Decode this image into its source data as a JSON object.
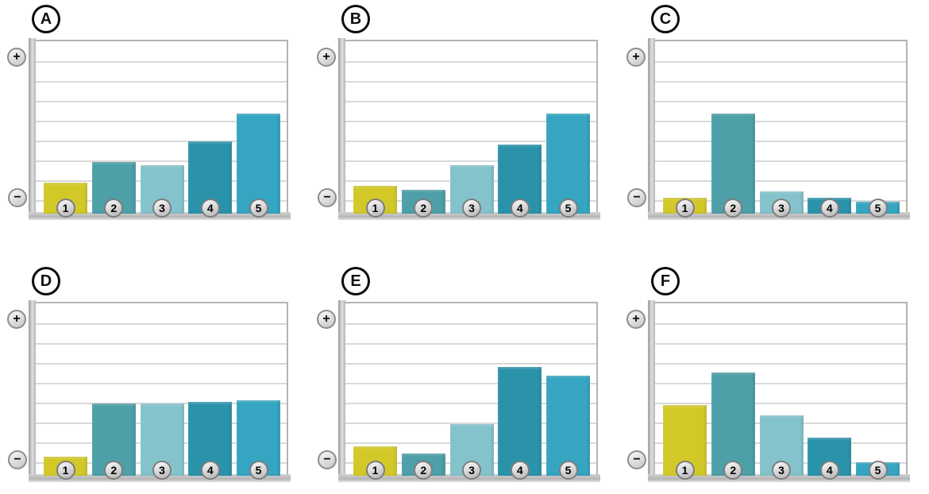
{
  "figure": {
    "description_title": "",
    "rows": 2,
    "cols": 3
  },
  "icons": {
    "plus": "+",
    "minus": "−"
  },
  "style": {
    "bar_colors": [
      "#d2c929",
      "#4d9fa8",
      "#85c3cc",
      "#2a93aa",
      "#35a5c1"
    ],
    "gridline_color": "#d9d9d9",
    "axis_color": "#b9b9b9",
    "badge_ring_color": "#7d7d7d",
    "letter_ring_color": "#0c0c0c",
    "background": "#ffffff"
  },
  "chart_data": [
    {
      "type": "bar",
      "title": "A",
      "categories": [
        "1",
        "2",
        "3",
        "4",
        "5"
      ],
      "values": [
        18,
        30,
        28,
        42,
        58
      ],
      "xlabel": "",
      "ylabel": "",
      "ylim": [
        0,
        100
      ],
      "grid": true,
      "gridline_count": 8,
      "y_axis_top_label": "+",
      "y_axis_bottom_label": "−",
      "legend": "none"
    },
    {
      "type": "bar",
      "title": "B",
      "categories": [
        "1",
        "2",
        "3",
        "4",
        "5"
      ],
      "values": [
        16,
        14,
        28,
        40,
        58
      ],
      "xlabel": "",
      "ylabel": "",
      "ylim": [
        0,
        100
      ],
      "grid": true,
      "gridline_count": 8,
      "y_axis_top_label": "+",
      "y_axis_bottom_label": "−",
      "legend": "none"
    },
    {
      "type": "bar",
      "title": "C",
      "categories": [
        "1",
        "2",
        "3",
        "4",
        "5"
      ],
      "values": [
        9,
        58,
        13,
        9,
        7
      ],
      "xlabel": "",
      "ylabel": "",
      "ylim": [
        0,
        100
      ],
      "grid": true,
      "gridline_count": 8,
      "y_axis_top_label": "+",
      "y_axis_bottom_label": "−",
      "legend": "none"
    },
    {
      "type": "bar",
      "title": "D",
      "categories": [
        "1",
        "2",
        "3",
        "4",
        "5"
      ],
      "values": [
        11,
        42,
        42,
        43,
        44
      ],
      "xlabel": "",
      "ylabel": "",
      "ylim": [
        0,
        100
      ],
      "grid": true,
      "gridline_count": 8,
      "y_axis_top_label": "+",
      "y_axis_bottom_label": "−",
      "legend": "none"
    },
    {
      "type": "bar",
      "title": "E",
      "categories": [
        "1",
        "2",
        "3",
        "4",
        "5"
      ],
      "values": [
        17,
        13,
        30,
        63,
        58
      ],
      "xlabel": "",
      "ylabel": "",
      "ylim": [
        0,
        100
      ],
      "grid": true,
      "gridline_count": 8,
      "y_axis_top_label": "+",
      "y_axis_bottom_label": "−",
      "legend": "none"
    },
    {
      "type": "bar",
      "title": "F",
      "categories": [
        "1",
        "2",
        "3",
        "4",
        "5"
      ],
      "values": [
        41,
        60,
        35,
        22,
        8
      ],
      "xlabel": "",
      "ylabel": "",
      "ylim": [
        0,
        100
      ],
      "grid": true,
      "gridline_count": 8,
      "y_axis_top_label": "+",
      "y_axis_bottom_label": "−",
      "legend": "none"
    }
  ]
}
